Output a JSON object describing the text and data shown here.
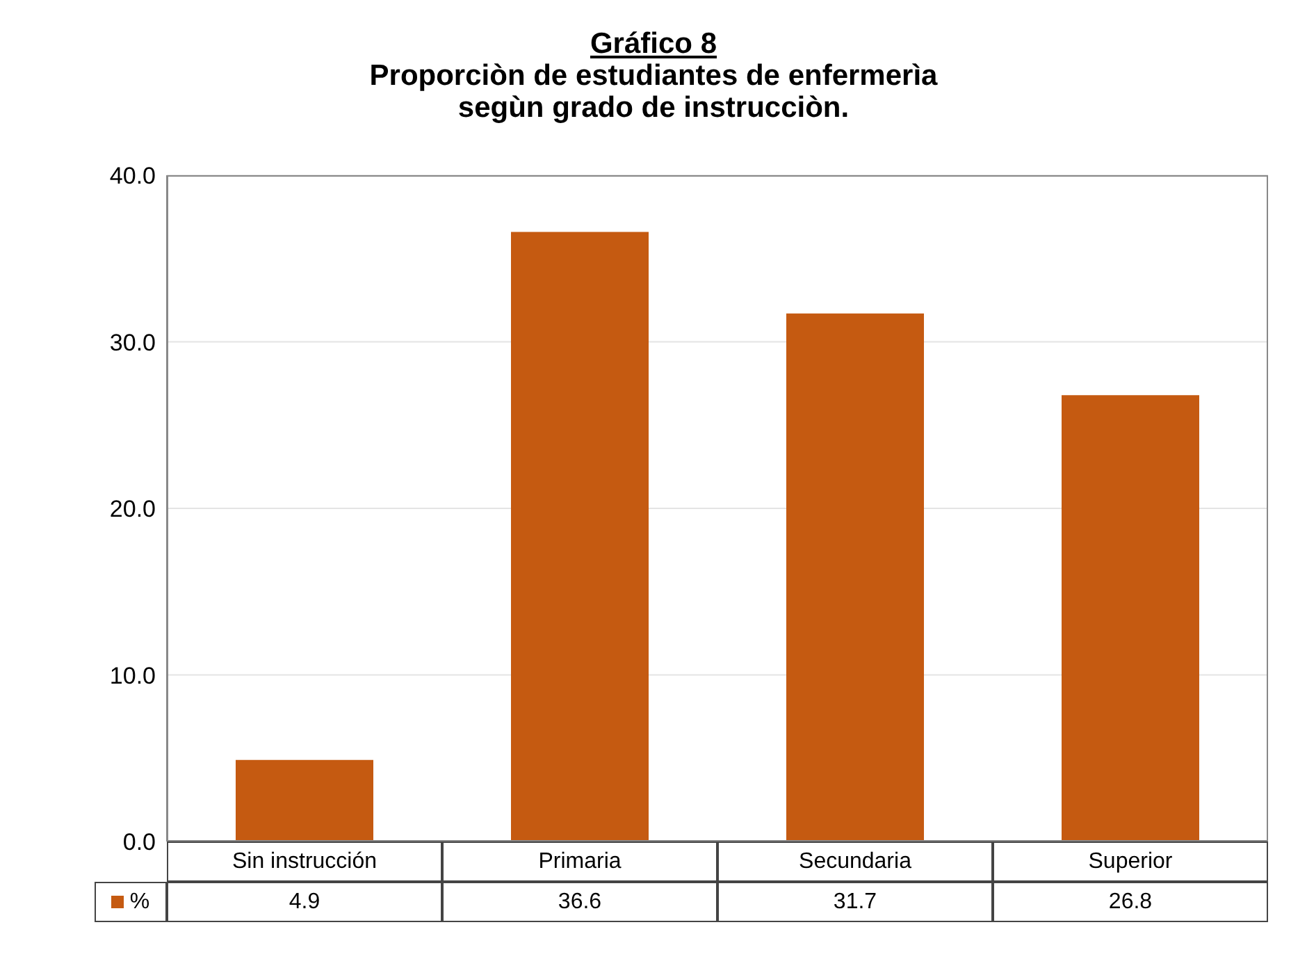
{
  "chart_data": {
    "type": "bar",
    "title": "Gráfico 8",
    "subtitle": "Proporciòn de estudiantes de enfermerìa\nsegùn grado de instrucciòn.",
    "categories": [
      "Sin instrucción",
      "Primaria",
      "Secundaria",
      "Superior"
    ],
    "series": [
      {
        "name": "%",
        "color": "#c55a11",
        "values": [
          4.9,
          36.6,
          31.7,
          26.8
        ]
      }
    ],
    "ylim": [
      0,
      40
    ],
    "yticks": [
      {
        "value": 0,
        "label": "0.0"
      },
      {
        "value": 10,
        "label": "10.0"
      },
      {
        "value": 20,
        "label": "20.0"
      },
      {
        "value": 30,
        "label": "30.0"
      },
      {
        "value": 40,
        "label": "40.0"
      }
    ],
    "grid": "y",
    "legend": "bottom left",
    "data_labels": true
  }
}
